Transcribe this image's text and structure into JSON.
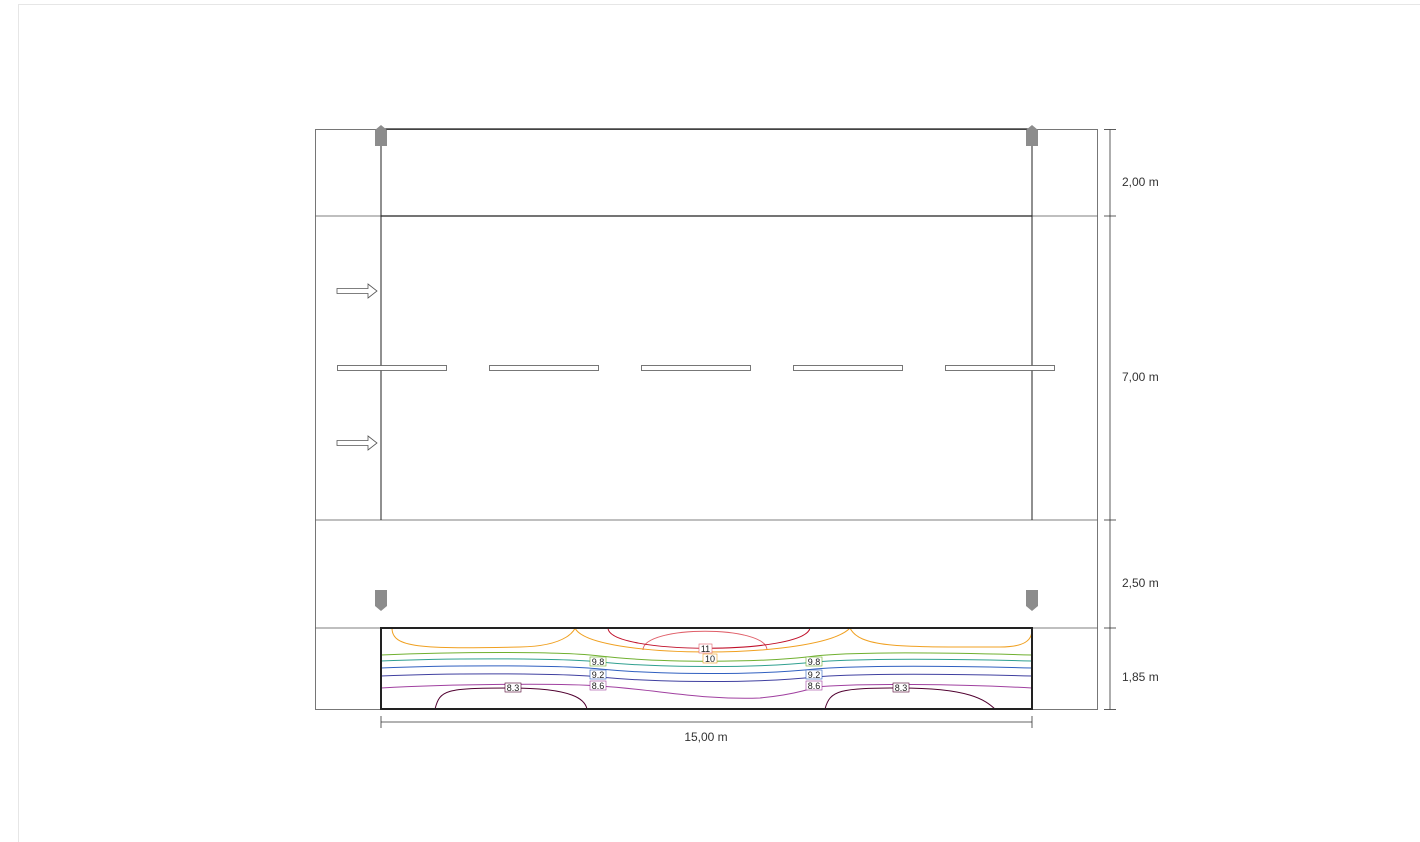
{
  "dimensions": {
    "sidewalk_top": "2,00 m",
    "roadway": "7,00 m",
    "sidewalk_bottom": "2,50 m",
    "evaluation_strip": "1,85 m",
    "length": "15,00 m"
  },
  "contour_labels": [
    "11",
    "10",
    "9.8",
    "9.2",
    "8.6",
    "8.3",
    "9.8",
    "9.2",
    "8.6",
    "8.3"
  ],
  "colors": {
    "outline": "#333333",
    "luminaire": "#8c8c8c",
    "contour_11": "#e0606a",
    "contour_10": "#c0102a",
    "contour_9_8_a": "#f0a020",
    "contour_9_8_b": "#70b030",
    "contour_9_2_a": "#30a090",
    "contour_9_2_b": "#3060c0",
    "contour_8_6": "#a040a0",
    "contour_8_3": "#500030"
  }
}
